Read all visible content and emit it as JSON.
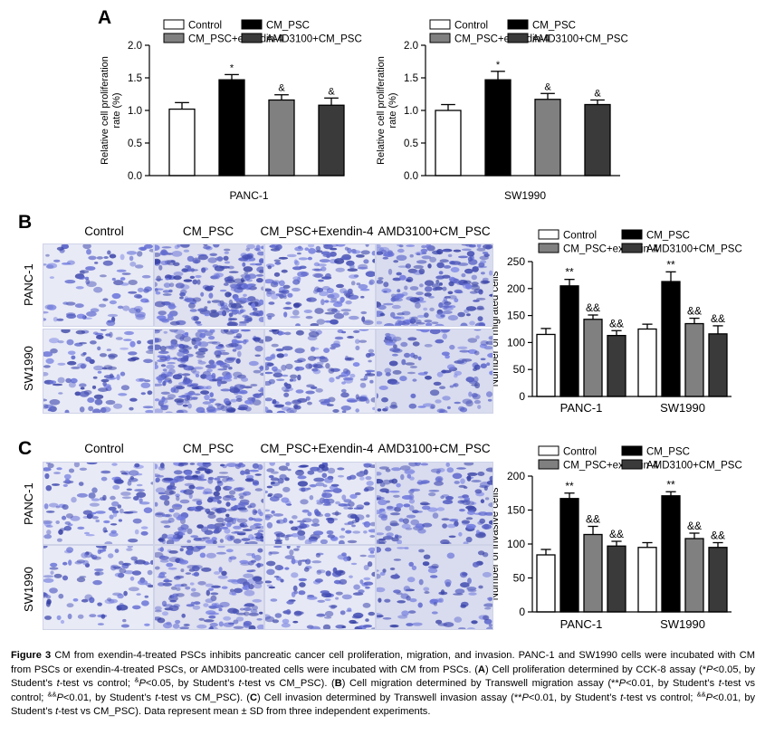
{
  "panels": {
    "a": "A",
    "b": "B",
    "c": "C"
  },
  "images": {
    "columns": [
      "Control",
      "CM_PSC",
      "CM_PSC+Exendin-4",
      "AMD3100+CM_PSC"
    ],
    "rows": [
      "PANC-1",
      "SW1990"
    ]
  },
  "legend": [
    "Control",
    "CM_PSC",
    "CM_PSC+exendin-4",
    "AMD3100+CM_PSC"
  ],
  "colors": {
    "control": "#ffffff",
    "cm_psc": "#000000",
    "exendin": "#808080",
    "amd": "#3a3a3a"
  },
  "chart_data": [
    {
      "id": "A1",
      "type": "bar",
      "title": "",
      "xlabel": "PANC-1",
      "ylabel": "Relative cell proliferation rate (%)",
      "ylim": [
        0,
        2.0
      ],
      "yticks": [
        "0.0",
        "0.5",
        "1.0",
        "1.5",
        "2.0"
      ],
      "series": [
        {
          "name": "Control",
          "values": [
            1.02
          ],
          "err": [
            0.1
          ],
          "mark": ""
        },
        {
          "name": "CM_PSC",
          "values": [
            1.47
          ],
          "err": [
            0.08
          ],
          "mark": "*"
        },
        {
          "name": "CM_PSC+exendin-4",
          "values": [
            1.16
          ],
          "err": [
            0.08
          ],
          "mark": "&"
        },
        {
          "name": "AMD3100+CM_PSC",
          "values": [
            1.08
          ],
          "err": [
            0.11
          ],
          "mark": "&"
        }
      ]
    },
    {
      "id": "A2",
      "type": "bar",
      "title": "",
      "xlabel": "SW1990",
      "ylabel": "Relative cell proliferation rate (%)",
      "ylim": [
        0,
        2.0
      ],
      "yticks": [
        "0.0",
        "0.5",
        "1.0",
        "1.5",
        "2.0"
      ],
      "series": [
        {
          "name": "Control",
          "values": [
            1.0
          ],
          "err": [
            0.09
          ],
          "mark": ""
        },
        {
          "name": "CM_PSC",
          "values": [
            1.47
          ],
          "err": [
            0.13
          ],
          "mark": "*"
        },
        {
          "name": "CM_PSC+exendin-4",
          "values": [
            1.17
          ],
          "err": [
            0.09
          ],
          "mark": "&"
        },
        {
          "name": "AMD3100+CM_PSC",
          "values": [
            1.09
          ],
          "err": [
            0.07
          ],
          "mark": "&"
        }
      ]
    },
    {
      "id": "B",
      "type": "bar",
      "title": "",
      "ylabel": "Number of migrated cells",
      "categories": [
        "PANC-1",
        "SW1990"
      ],
      "ylim": [
        0,
        250
      ],
      "yticks": [
        "0",
        "50",
        "100",
        "150",
        "200",
        "250"
      ],
      "series": [
        {
          "name": "Control",
          "values": [
            115,
            125
          ],
          "err": [
            11,
            9
          ],
          "marks": [
            "",
            ""
          ]
        },
        {
          "name": "CM_PSC",
          "values": [
            205,
            213
          ],
          "err": [
            12,
            18
          ],
          "marks": [
            "**",
            "**"
          ]
        },
        {
          "name": "CM_PSC+exendin-4",
          "values": [
            143,
            135
          ],
          "err": [
            8,
            10
          ],
          "marks": [
            "&&",
            "&&"
          ]
        },
        {
          "name": "AMD3100+CM_PSC",
          "values": [
            113,
            116
          ],
          "err": [
            9,
            15
          ],
          "marks": [
            "&&",
            "&&"
          ]
        }
      ]
    },
    {
      "id": "C",
      "type": "bar",
      "title": "",
      "ylabel": "Number of invasive cells",
      "categories": [
        "PANC-1",
        "SW1990"
      ],
      "ylim": [
        0,
        200
      ],
      "yticks": [
        "0",
        "50",
        "100",
        "150",
        "200"
      ],
      "series": [
        {
          "name": "Control",
          "values": [
            84,
            95
          ],
          "err": [
            8,
            7
          ],
          "marks": [
            "",
            ""
          ]
        },
        {
          "name": "CM_PSC",
          "values": [
            167,
            171
          ],
          "err": [
            8,
            6
          ],
          "marks": [
            "**",
            "**"
          ]
        },
        {
          "name": "CM_PSC+exendin-4",
          "values": [
            114,
            108
          ],
          "err": [
            12,
            8
          ],
          "marks": [
            "&&",
            "&&"
          ]
        },
        {
          "name": "AMD3100+CM_PSC",
          "values": [
            97,
            95
          ],
          "err": [
            7,
            7
          ],
          "marks": [
            "&&",
            "&&"
          ]
        }
      ]
    }
  ],
  "caption": {
    "label": "Figure 3",
    "s1": " CM from exendin-4-treated PSCs inhibits pancreatic cancer cell proliferation, migration, and invasion. PANC-1 and SW1990 cells were incubated with CM from PSCs or exendin-4-treated PSCs, or AMD3100-treated cells were incubated with CM from PSCs. (",
    "A": "A",
    "s2": ") Cell proliferation determined by CCK-8 assay (*",
    "P": "P",
    "s3": "<0.05, by Student’s ",
    "t": "t",
    "s4": "-test vs control; ",
    "amp": "&",
    "s5": "<0.05, by Student’s ",
    "s6": "-test vs CM_PSC). (",
    "B": "B",
    "s7": ") Cell migration determined by Transwell migration assay (**",
    "s8": "<0.01, by Student’s ",
    "s9": "-test vs control; ",
    "amp2": "&&",
    "s10": "<0.01, by Student’s ",
    "s11": "-test vs CM_PSC). (",
    "C": "C",
    "s12": ") Cell invasion determined by Transwell invasion assay (**",
    "s13": "<0.01, by Student’s ",
    "s14": "-test vs control; ",
    "s15": "<0.01, by Student’s ",
    "s16": "-test vs CM_PSC). Data represent mean ± SD from three independent experiments."
  }
}
